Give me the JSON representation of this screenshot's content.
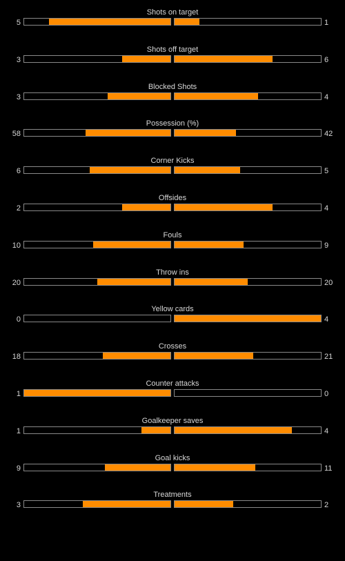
{
  "colors": {
    "bar_fill": "#ff8c00",
    "background": "#000000",
    "text": "#d8d8d8",
    "track_border": "#8a8a8a"
  },
  "chart_data": {
    "type": "bar",
    "orientation": "diverging-horizontal",
    "series": [
      {
        "values": [
          5,
          3,
          3,
          58,
          6,
          2,
          10,
          20,
          0,
          18,
          1,
          1,
          9,
          3
        ]
      },
      {
        "values": [
          1,
          6,
          4,
          42,
          5,
          4,
          9,
          20,
          4,
          21,
          0,
          4,
          11,
          2
        ]
      }
    ],
    "categories": [
      "Shots on target",
      "Shots off target",
      "Blocked Shots",
      "Possession (%)",
      "Corner Kicks",
      "Offsides",
      "Fouls",
      "Throw ins",
      "Yellow cards",
      "Crosses",
      "Counter attacks",
      "Goalkeeper saves",
      "Goal kicks",
      "Treatments"
    ],
    "fill_fraction": {
      "home": [
        0.83,
        0.33,
        0.43,
        0.58,
        0.55,
        0.33,
        0.53,
        0.5,
        0.0,
        0.46,
        1.0,
        0.2,
        0.45,
        0.6
      ],
      "away": [
        0.17,
        0.67,
        0.57,
        0.42,
        0.45,
        0.67,
        0.47,
        0.5,
        1.0,
        0.54,
        0.0,
        0.8,
        0.55,
        0.4
      ]
    }
  }
}
